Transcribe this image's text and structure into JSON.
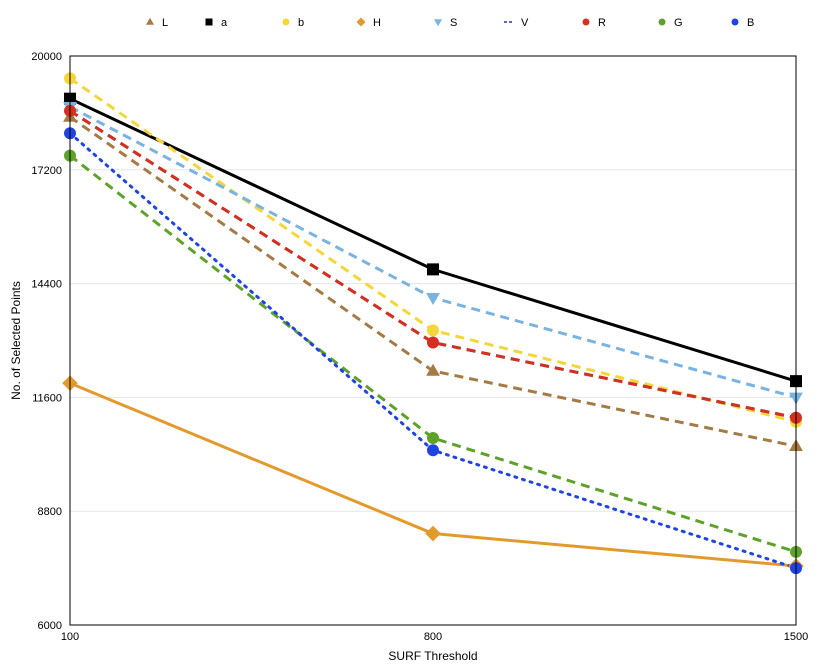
{
  "chart_data": {
    "type": "line",
    "xlabel": "SURF Threshold",
    "ylabel": "No. of Selected Points",
    "x": [
      100,
      800,
      1500
    ],
    "x_tick_labels": [
      "100",
      "800",
      "1500"
    ],
    "ylim": [
      6000,
      20000
    ],
    "y_ticks": [
      6000,
      8800,
      11600,
      14400,
      17200,
      20000
    ],
    "y_tick_labels": [
      "6000",
      "8800",
      "11600",
      "14400",
      "17200",
      "20000"
    ],
    "grid": "horizontal",
    "legend_position": "top",
    "series": [
      {
        "name": "L",
        "values": [
          18500,
          12250,
          10400
        ],
        "color": "#a47a45",
        "dash": "dashed",
        "marker": "triangle-up",
        "width": 3
      },
      {
        "name": "a",
        "values": [
          18950,
          14750,
          12000
        ],
        "color": "#000000",
        "dash": "solid",
        "marker": "square",
        "width": 3
      },
      {
        "name": "b",
        "values": [
          19450,
          13250,
          11000
        ],
        "color": "#f5d63a",
        "dash": "dashed",
        "marker": "circle",
        "width": 3
      },
      {
        "name": "H",
        "values": [
          11950,
          8250,
          7450
        ],
        "color": "#e39a2d",
        "dash": "solid",
        "marker": "diamond",
        "width": 3
      },
      {
        "name": "S",
        "values": [
          18750,
          14050,
          11600
        ],
        "color": "#7ab3df",
        "dash": "dashed",
        "marker": "triangle-down",
        "width": 3
      },
      {
        "name": "V",
        "values": [
          18650,
          12950,
          11100
        ],
        "color": "#5a6aa8",
        "dash": "dashed",
        "marker": "none",
        "width": 3
      },
      {
        "name": "R",
        "values": [
          18650,
          12950,
          11100
        ],
        "color": "#d4301f",
        "dash": "dashed",
        "marker": "circle",
        "width": 3
      },
      {
        "name": "G",
        "values": [
          17550,
          10600,
          7800
        ],
        "color": "#5fa22b",
        "dash": "dashed",
        "marker": "circle",
        "width": 3
      },
      {
        "name": "B",
        "values": [
          18100,
          10300,
          7400
        ],
        "color": "#1f44e0",
        "dash": "dotted",
        "marker": "circle",
        "width": 3
      }
    ]
  }
}
